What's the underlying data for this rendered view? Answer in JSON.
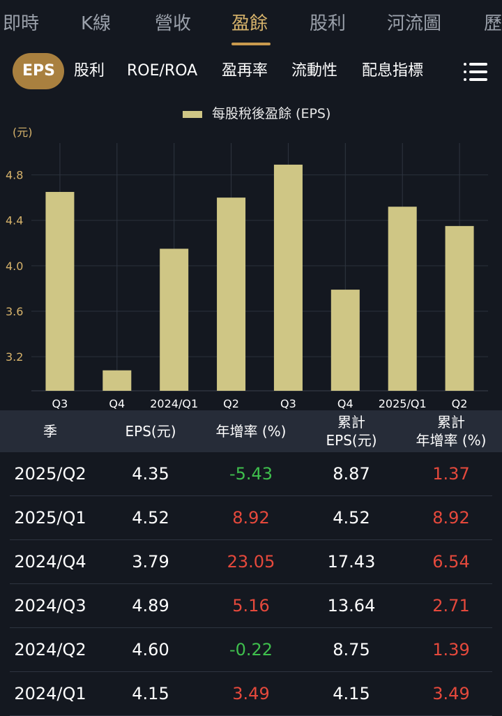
{
  "top_tabs": [
    "即時",
    "K線",
    "營收",
    "盈餘",
    "股利",
    "河流圖",
    "歷"
  ],
  "top_active_index": 3,
  "sub_tabs": [
    "EPS",
    "股利",
    "ROE/ROA",
    "盈再率",
    "流動性",
    "配息指標"
  ],
  "sub_active_index": 0,
  "menu_icon": "list-menu-icon",
  "colors": {
    "accent": "#c99a4e",
    "bar": "#cfc685",
    "positive": "#e5493c",
    "negative": "#3fbf4d",
    "background": "#141820"
  },
  "chart_data": {
    "type": "bar",
    "legend": "每股稅後盈餘 (EPS)",
    "unit": "(元)",
    "categories": [
      "Q3",
      "Q4",
      "2024/Q1",
      "Q2",
      "Q3",
      "Q4",
      "2025/Q1",
      "Q2"
    ],
    "values": [
      4.65,
      3.08,
      4.15,
      4.6,
      4.89,
      3.79,
      4.52,
      4.35
    ],
    "y_ticks": [
      "3.2",
      "3.6",
      "4.0",
      "4.4",
      "4.8"
    ],
    "ylim": [
      2.9,
      5.08
    ],
    "grid": true
  },
  "table": {
    "headers": [
      [
        "季"
      ],
      [
        "EPS(元)"
      ],
      [
        "年增率 (%)"
      ],
      [
        "累計",
        "EPS(元)"
      ],
      [
        "累計",
        "年增率 (%)"
      ]
    ],
    "rows": [
      {
        "season": "2025/Q2",
        "eps": "4.35",
        "yoy": "-5.43",
        "cum_eps": "8.87",
        "cum_yoy": "1.37"
      },
      {
        "season": "2025/Q1",
        "eps": "4.52",
        "yoy": "8.92",
        "cum_eps": "4.52",
        "cum_yoy": "8.92"
      },
      {
        "season": "2024/Q4",
        "eps": "3.79",
        "yoy": "23.05",
        "cum_eps": "17.43",
        "cum_yoy": "6.54"
      },
      {
        "season": "2024/Q3",
        "eps": "4.89",
        "yoy": "5.16",
        "cum_eps": "13.64",
        "cum_yoy": "2.71"
      },
      {
        "season": "2024/Q2",
        "eps": "4.60",
        "yoy": "-0.22",
        "cum_eps": "8.75",
        "cum_yoy": "1.39"
      },
      {
        "season": "2024/Q1",
        "eps": "4.15",
        "yoy": "3.49",
        "cum_eps": "4.15",
        "cum_yoy": "3.49"
      }
    ]
  }
}
